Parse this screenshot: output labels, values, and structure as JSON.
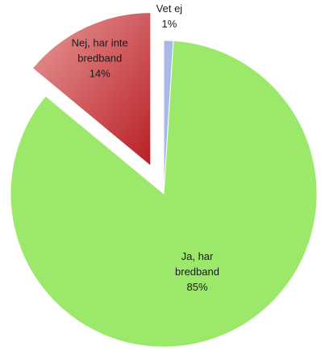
{
  "chart_data": {
    "type": "pie",
    "exploded": true,
    "slices": [
      {
        "label_lines": [
          "Ja, har",
          "bredband",
          "85%"
        ],
        "value": 85,
        "color": "#9be86b",
        "color_dark": "#6fcf3e"
      },
      {
        "label_lines": [
          "Nej, har inte",
          "bredband",
          "14%"
        ],
        "value": 14,
        "color": "#e89a9a",
        "color_dark": "#b81f25"
      },
      {
        "label_lines": [
          "Vet ej",
          "1%"
        ],
        "value": 1,
        "color": "#a9b9e6",
        "color_dark": "#7f93cf"
      }
    ]
  }
}
